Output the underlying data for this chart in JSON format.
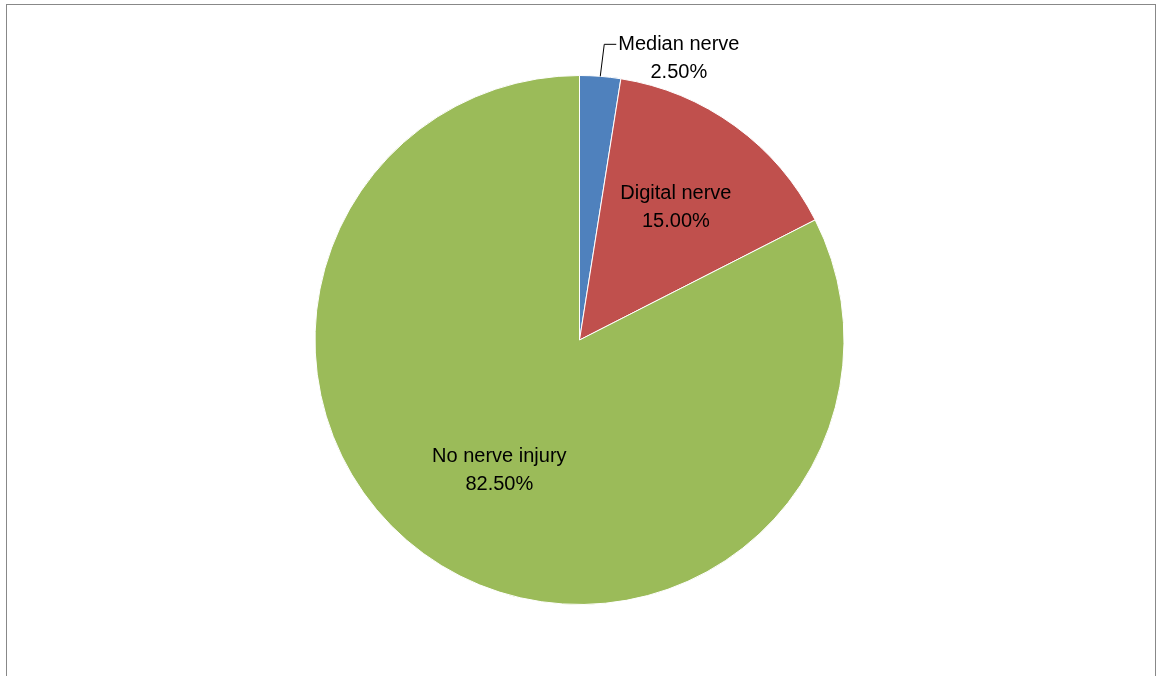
{
  "chart_data": {
    "type": "pie",
    "categories": [
      "Median nerve",
      "Digital nerve",
      "No nerve injury"
    ],
    "values": [
      2.5,
      15,
      82.5
    ],
    "value_labels": [
      "2.50%",
      "15.00%",
      "82.50%"
    ],
    "colors": [
      "#4f81bd",
      "#c0504d",
      "#9bbb59"
    ],
    "legend": false
  }
}
